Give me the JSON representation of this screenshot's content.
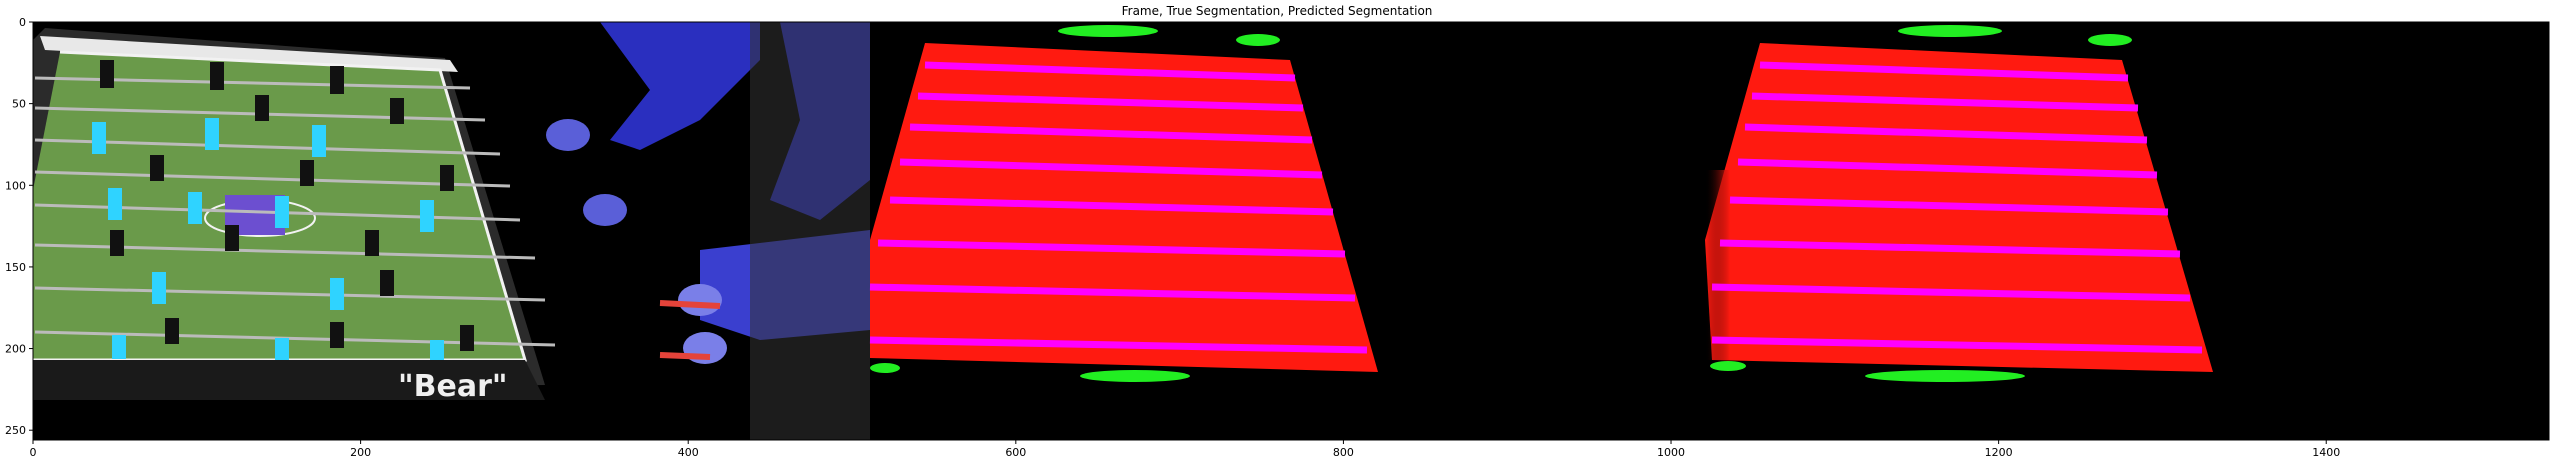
{
  "title": "Frame, True Segmentation, Predicted Segmentation",
  "frame_text": "\"Bear\"",
  "x_ticks": [
    "0",
    "200",
    "400",
    "600",
    "800",
    "1000",
    "1200",
    "1400"
  ],
  "y_ticks": [
    "0",
    "50",
    "100",
    "150",
    "200",
    "250"
  ],
  "colors": {
    "table_red": "#ff1a10",
    "rod_magenta": "#ff00ff",
    "goal_green": "#22ee22",
    "field_green": "#6a9a4a",
    "player_cyan": "#2fd3ff",
    "player_black": "#111111",
    "sleeve_blue": "#2a2fbf"
  },
  "axes": {
    "x_range": [
      0,
      1536
    ],
    "y_range": [
      256,
      0
    ]
  }
}
